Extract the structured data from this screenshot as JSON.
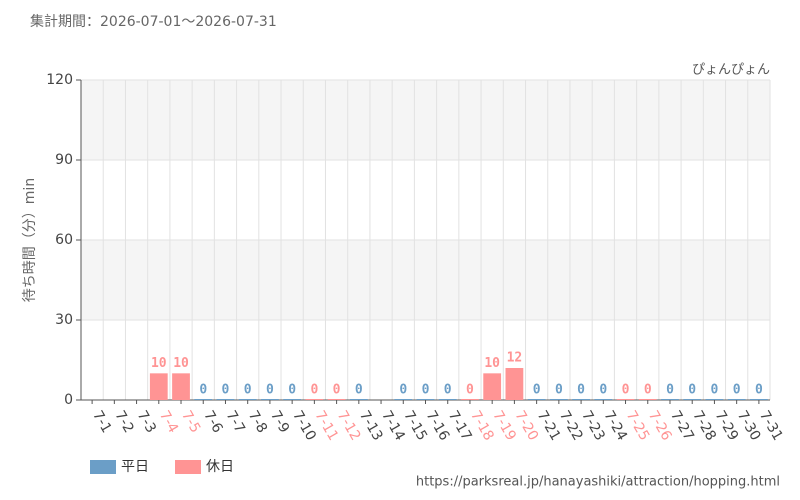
{
  "chart_data": {
    "type": "bar",
    "title": "集計期間：2026-07-01～2026-07-31",
    "subtitle": "ぴょんぴょん",
    "y_label": "待ち時間（分）min",
    "source": "https://parksreal.jp/hanayashiki/attraction/hopping.html",
    "categories": [
      "7-1",
      "7-2",
      "7-3",
      "7-4",
      "7-5",
      "7-6",
      "7-7",
      "7-8",
      "7-9",
      "7-10",
      "7-11",
      "7-12",
      "7-13",
      "7-14",
      "7-15",
      "7-16",
      "7-17",
      "7-18",
      "7-19",
      "7-20",
      "7-21",
      "7-22",
      "7-23",
      "7-24",
      "7-25",
      "7-26",
      "7-27",
      "7-28",
      "7-29",
      "7-30",
      "7-31"
    ],
    "series": [
      {
        "name": "平日",
        "color": "#6b9ec7",
        "values": [
          null,
          null,
          null,
          null,
          null,
          0,
          0,
          0,
          0,
          0,
          null,
          null,
          0,
          null,
          0,
          0,
          0,
          null,
          null,
          null,
          0,
          0,
          0,
          0,
          null,
          null,
          0,
          0,
          0,
          0,
          0
        ]
      },
      {
        "name": "休日",
        "color": "#ff9494",
        "values": [
          null,
          null,
          null,
          10,
          10,
          null,
          null,
          null,
          null,
          null,
          0,
          0,
          null,
          null,
          null,
          null,
          null,
          0,
          10,
          12,
          null,
          null,
          null,
          null,
          0,
          0,
          null,
          null,
          null,
          null,
          null
        ]
      }
    ],
    "ylim": [
      0,
      120
    ],
    "yticks": [
      0,
      30,
      60,
      90,
      120
    ],
    "grid": true,
    "legend": "bottom-left"
  }
}
